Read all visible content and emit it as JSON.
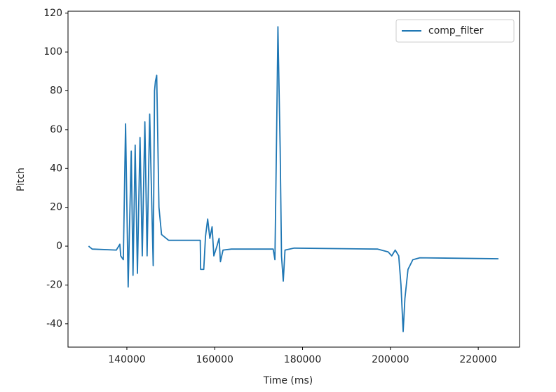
{
  "chart_data": {
    "type": "line",
    "xlabel": "Time (ms)",
    "ylabel": "Pitch",
    "x": [
      131300,
      132100,
      137600,
      138400,
      138600,
      139200,
      139700,
      140300,
      141000,
      141400,
      141900,
      142400,
      143000,
      143500,
      144100,
      144600,
      145200,
      146000,
      146300,
      146500,
      146800,
      147000,
      147300,
      147900,
      149500,
      156700,
      156800,
      157500,
      157900,
      158400,
      158900,
      159400,
      159800,
      160500,
      161000,
      161300,
      161900,
      163800,
      173300,
      173700,
      174100,
      174400,
      174900,
      175200,
      175600,
      176000,
      178100,
      197100,
      199500,
      200300,
      201100,
      201900,
      202400,
      202900,
      203300,
      204000,
      205100,
      206700,
      224600
    ],
    "series": [
      {
        "name": "comp_filter",
        "color": "#1f77b4",
        "values": [
          0,
          -1.5,
          -2,
          1,
          -5,
          -7,
          63,
          -21,
          49,
          -15,
          52,
          -14,
          56,
          -5,
          64,
          -5,
          68,
          -10,
          80,
          85,
          88,
          60,
          20,
          6,
          3,
          3,
          -12,
          -12,
          5,
          14,
          4,
          10,
          -5,
          0,
          4,
          -8,
          -2,
          -1.5,
          -1.5,
          -7,
          60,
          113,
          50,
          -5,
          -18,
          -2,
          -1,
          -1.5,
          -3,
          -5,
          -2,
          -5,
          -20,
          -44,
          -27,
          -12,
          -7,
          -6,
          -6.5
        ]
      }
    ],
    "xlim": [
      126600,
      229400
    ],
    "ylim": [
      -52,
      121
    ],
    "xticks": [
      140000,
      160000,
      180000,
      200000,
      220000
    ],
    "yticks": [
      -40,
      -20,
      0,
      20,
      40,
      60,
      80,
      100,
      120
    ],
    "legend": "upper right"
  }
}
